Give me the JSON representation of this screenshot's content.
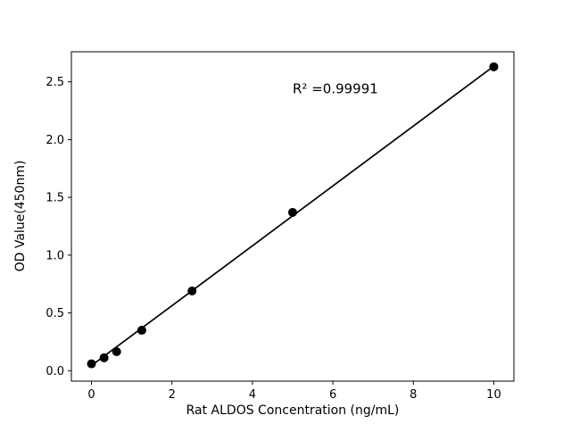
{
  "figure": {
    "background_color": "#ffffff",
    "plot_border_color": "#000000"
  },
  "chart_data": {
    "type": "scatter",
    "title": "",
    "xlabel": "Rat ALDOS Concentration (ng/mL)",
    "ylabel": "OD Value(450nm)",
    "x": [
      0,
      0.313,
      0.625,
      1.25,
      2.5,
      5,
      10
    ],
    "y": [
      0.06,
      0.112,
      0.165,
      0.35,
      0.69,
      1.37,
      2.63
    ],
    "fit_line": {
      "x": [
        0,
        10
      ],
      "y": [
        0.045,
        2.635
      ]
    },
    "xlim": [
      -0.5,
      10.5
    ],
    "ylim": [
      -0.09,
      2.76
    ],
    "xticks": [
      0,
      2,
      4,
      6,
      8,
      10
    ],
    "xtick_labels": [
      "0",
      "2",
      "4",
      "6",
      "8",
      "10"
    ],
    "yticks": [
      0.0,
      0.5,
      1.0,
      1.5,
      2.0,
      2.5
    ],
    "ytick_labels": [
      "0.0",
      "0.5",
      "1.0",
      "1.5",
      "2.0",
      "2.5"
    ],
    "annotation": {
      "text": "R² =0.99991",
      "x": 5.0,
      "y": 2.4
    },
    "marker_color": "#000000",
    "line_color": "#000000",
    "grid": false,
    "legend": null
  }
}
